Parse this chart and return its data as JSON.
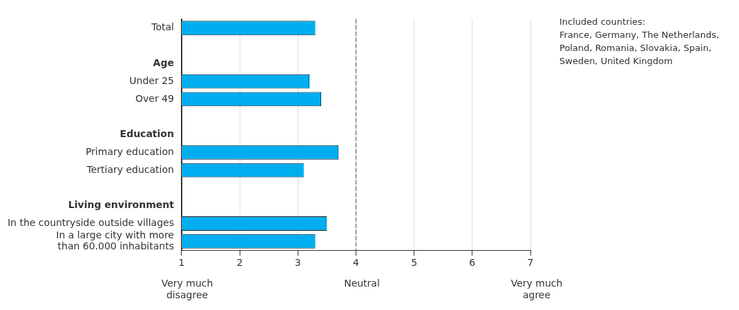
{
  "chart_data": {
    "type": "bar",
    "orientation": "horizontal",
    "categories": [
      "Total",
      null,
      "Age",
      "Under 25",
      "Over 49",
      null,
      "Education",
      "Primary education",
      "Tertiary education",
      null,
      "Living environment",
      "In the countryside outside villages",
      "In a large city with more\nthan 60.000 inhabitants"
    ],
    "values": [
      3.3,
      null,
      null,
      3.2,
      3.4,
      null,
      null,
      3.7,
      3.1,
      null,
      null,
      3.5,
      3.3
    ],
    "color": "#00aeef",
    "xlim": [
      1,
      7
    ],
    "xticks": [
      1,
      2,
      3,
      4,
      5,
      6,
      7
    ],
    "grid": "x",
    "legend": false,
    "ref_lines": [
      {
        "axis": "x",
        "value": 4,
        "color": "#aaaaaa",
        "line_style": "dashed"
      }
    ],
    "annotations": [
      "Included countries:\nFrance, Germany, The Netherlands, Poland, Romania, Slovakia, Spain, Sweden, United Kingdom",
      "Very much\ndisagree",
      "Neutral",
      "Very much\nagree"
    ]
  }
}
